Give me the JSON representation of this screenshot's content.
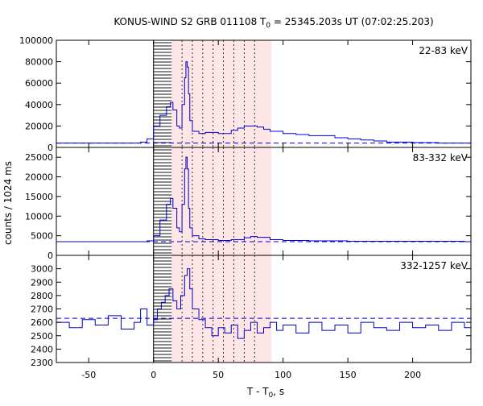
{
  "chart_data": {
    "type": "line",
    "title_prefix": "KONUS-WIND S2 GRB 011108 T",
    "title_sub": "0",
    "title_suffix": " = 25345.203s UT (07:02:25.203)",
    "xlabel_prefix": "T - T",
    "xlabel_sub": "0",
    "xlabel_suffix": ", s",
    "ylabel": "counts / 1024 ms",
    "xlim": [
      -75,
      245
    ],
    "xticks": [
      -50,
      0,
      50,
      100,
      150,
      200
    ],
    "xtick_labels": [
      "-50",
      "0",
      "50",
      "100",
      "150",
      "200"
    ],
    "colors": {
      "data": "#0000cc",
      "background_line": "#0000cc",
      "shade_fill": "#ffe6e6",
      "hatch": "#444444",
      "frame": "#000000"
    },
    "shaded_region": [
      14,
      91
    ],
    "hatched_region": [
      0,
      14
    ],
    "interval_markers": [
      22,
      30,
      38,
      46,
      54,
      62,
      70,
      78
    ],
    "panels": [
      {
        "label": "22-83 keV",
        "ylim": [
          0,
          100000
        ],
        "yticks": [
          0,
          20000,
          40000,
          60000,
          80000,
          100000
        ],
        "ytick_labels": [
          "0",
          "20000",
          "40000",
          "60000",
          "80000",
          "100000"
        ],
        "background": 4000,
        "x": [
          -75,
          -20,
          -10,
          -5,
          0,
          5,
          10,
          13,
          15,
          18,
          20,
          22,
          24,
          25,
          26,
          27,
          28,
          30,
          35,
          40,
          50,
          60,
          65,
          70,
          75,
          80,
          85,
          90,
          100,
          110,
          120,
          130,
          140,
          150,
          160,
          170,
          180,
          190,
          200,
          210,
          220,
          230,
          240
        ],
        "y": [
          4000,
          4000,
          5000,
          8000,
          20000,
          30000,
          38000,
          42000,
          35000,
          20000,
          18000,
          40000,
          65000,
          80000,
          75000,
          50000,
          25000,
          15000,
          13000,
          14000,
          13000,
          16000,
          18000,
          20000,
          20000,
          19000,
          17000,
          15000,
          13000,
          12000,
          11000,
          11000,
          9000,
          8000,
          7000,
          6000,
          5000,
          5000,
          4500,
          4500,
          4000,
          4000,
          4000
        ]
      },
      {
        "label": "83-332 keV",
        "ylim": [
          0,
          27500
        ],
        "yticks": [
          0,
          5000,
          10000,
          15000,
          20000,
          25000
        ],
        "ytick_labels": [
          "0",
          "5000",
          "10000",
          "15000",
          "20000",
          "25000"
        ],
        "background": 3500,
        "x": [
          -75,
          -10,
          -5,
          0,
          5,
          10,
          13,
          15,
          18,
          20,
          22,
          24,
          25,
          26,
          27,
          28,
          30,
          35,
          40,
          50,
          60,
          70,
          75,
          80,
          90,
          100,
          120,
          150,
          200,
          240
        ],
        "y": [
          3500,
          3500,
          3700,
          5000,
          9000,
          13000,
          14500,
          12000,
          7000,
          6000,
          13000,
          22000,
          25000,
          22000,
          12000,
          7000,
          5000,
          4200,
          4000,
          3800,
          4000,
          4500,
          4800,
          4600,
          4000,
          3800,
          3700,
          3600,
          3600,
          3500
        ]
      },
      {
        "label": "332-1257 keV",
        "ylim": [
          2300,
          3100
        ],
        "yticks": [
          2300,
          2400,
          2500,
          2600,
          2700,
          2800,
          2900,
          3000
        ],
        "ytick_labels": [
          "2300",
          "2400",
          "2500",
          "2600",
          "2700",
          "2800",
          "2900",
          "3000"
        ],
        "background": 2630,
        "x": [
          -75,
          -65,
          -55,
          -45,
          -35,
          -25,
          -15,
          -10,
          -5,
          0,
          3,
          6,
          9,
          12,
          15,
          18,
          21,
          24,
          26,
          28,
          30,
          35,
          40,
          45,
          50,
          55,
          60,
          65,
          70,
          75,
          80,
          85,
          90,
          95,
          100,
          110,
          120,
          130,
          140,
          150,
          160,
          170,
          180,
          190,
          200,
          210,
          220,
          230,
          240
        ],
        "y": [
          2600,
          2560,
          2620,
          2580,
          2650,
          2550,
          2600,
          2700,
          2580,
          2620,
          2700,
          2750,
          2800,
          2850,
          2760,
          2700,
          2800,
          2950,
          3000,
          2850,
          2700,
          2620,
          2560,
          2500,
          2560,
          2520,
          2580,
          2480,
          2540,
          2600,
          2520,
          2560,
          2600,
          2540,
          2580,
          2520,
          2600,
          2540,
          2580,
          2520,
          2600,
          2560,
          2540,
          2600,
          2560,
          2580,
          2540,
          2600,
          2560
        ]
      }
    ]
  }
}
